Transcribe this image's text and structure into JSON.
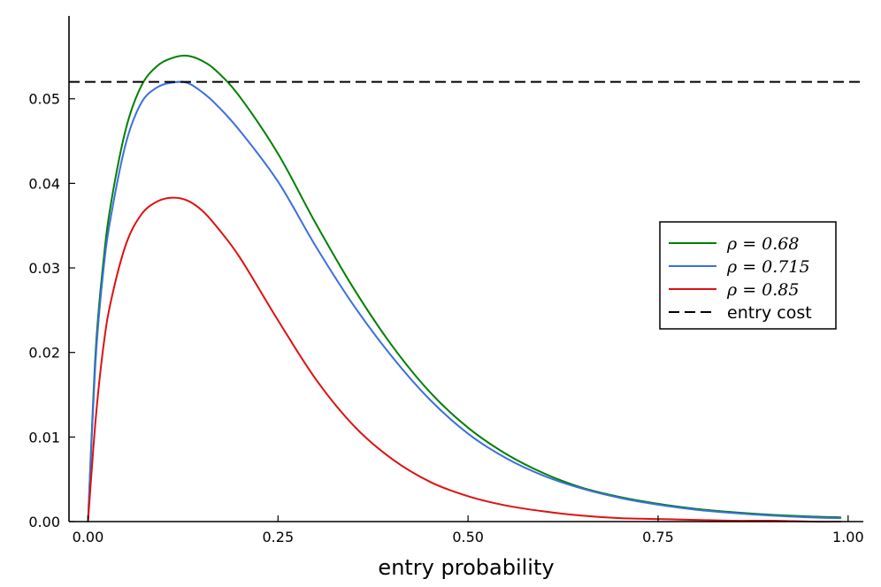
{
  "chart_data": {
    "type": "line",
    "title": "",
    "xlabel": "entry probability",
    "ylabel": "",
    "xlim": [
      -0.025,
      1.02
    ],
    "ylim": [
      0.0,
      0.0598
    ],
    "x_ticks": [
      0.0,
      0.25,
      0.5,
      0.75,
      1.0
    ],
    "x_tick_labels": [
      "0.00",
      "0.25",
      "0.50",
      "0.75",
      "1.00"
    ],
    "y_ticks": [
      0.0,
      0.01,
      0.02,
      0.03,
      0.04,
      0.05
    ],
    "y_tick_labels": [
      "0.00",
      "0.01",
      "0.02",
      "0.03",
      "0.04",
      "0.05"
    ],
    "grid": false,
    "legend_position": "right",
    "series": [
      {
        "name": "ρ = 0.68",
        "color": "#008000",
        "style": "solid",
        "x": [
          0.0,
          0.01,
          0.02,
          0.03,
          0.05,
          0.07,
          0.09,
          0.11,
          0.13,
          0.15,
          0.17,
          0.2,
          0.25,
          0.3,
          0.35,
          0.4,
          0.45,
          0.5,
          0.55,
          0.6,
          0.65,
          0.7,
          0.75,
          0.8,
          0.85,
          0.9,
          0.95,
          0.99
        ],
        "y": [
          0.0,
          0.02,
          0.0305,
          0.0375,
          0.0465,
          0.0515,
          0.0538,
          0.0548,
          0.0551,
          0.0545,
          0.0532,
          0.0502,
          0.0435,
          0.0352,
          0.0275,
          0.0208,
          0.0153,
          0.0111,
          0.008,
          0.0057,
          0.004,
          0.0029,
          0.0021,
          0.0015,
          0.0011,
          0.0008,
          0.0006,
          0.0005
        ]
      },
      {
        "name": "ρ = 0.715",
        "color": "#3b6fe0",
        "style": "solid",
        "x": [
          0.0,
          0.01,
          0.02,
          0.03,
          0.05,
          0.07,
          0.09,
          0.11,
          0.13,
          0.15,
          0.17,
          0.2,
          0.25,
          0.3,
          0.35,
          0.4,
          0.45,
          0.5,
          0.55,
          0.6,
          0.65,
          0.7,
          0.75,
          0.8,
          0.85,
          0.9,
          0.95,
          0.99
        ],
        "y": [
          0.0,
          0.019,
          0.0295,
          0.036,
          0.0448,
          0.0495,
          0.0513,
          0.0519,
          0.0519,
          0.0508,
          0.0492,
          0.0462,
          0.0402,
          0.0325,
          0.0255,
          0.0195,
          0.0144,
          0.0104,
          0.0075,
          0.0054,
          0.0039,
          0.0028,
          0.002,
          0.0014,
          0.001,
          0.0007,
          0.0005,
          0.0004
        ]
      },
      {
        "name": "ρ = 0.85",
        "color": "#e01010",
        "style": "solid",
        "x": [
          0.0,
          0.01,
          0.02,
          0.03,
          0.05,
          0.07,
          0.09,
          0.11,
          0.13,
          0.15,
          0.17,
          0.2,
          0.25,
          0.3,
          0.35,
          0.4,
          0.45,
          0.5,
          0.55,
          0.6,
          0.65,
          0.7,
          0.75,
          0.8,
          0.85,
          0.9,
          0.95,
          0.99
        ],
        "y": [
          0.0,
          0.012,
          0.0205,
          0.026,
          0.0328,
          0.0363,
          0.0378,
          0.0383,
          0.038,
          0.0368,
          0.0348,
          0.0312,
          0.0238,
          0.0168,
          0.0113,
          0.0074,
          0.0047,
          0.003,
          0.0019,
          0.0012,
          0.0007,
          0.0004,
          0.0003,
          0.0002,
          0.0001,
          0.0001,
          0.0,
          0.0
        ]
      }
    ],
    "reference_lines": [
      {
        "name": "entry cost",
        "orientation": "horizontal",
        "y": 0.052,
        "color": "#000000",
        "style": "dashed"
      }
    ]
  }
}
